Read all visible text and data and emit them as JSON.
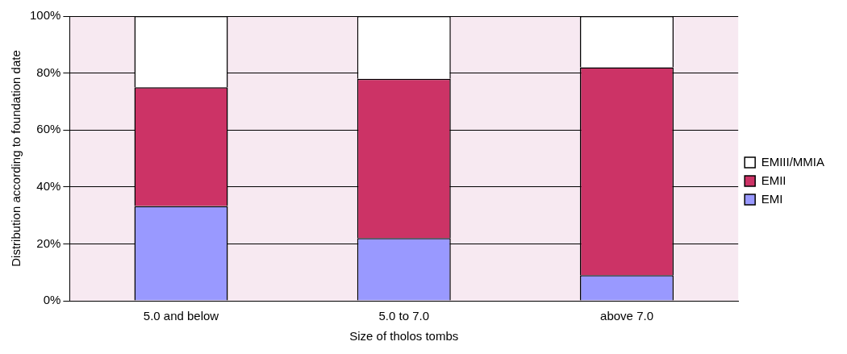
{
  "chart_data": {
    "type": "bar",
    "stacked": true,
    "xlabel": "Size of tholos tombs",
    "ylabel": "Distribution according to foundation date",
    "categories": [
      "5.0 and below",
      "5.0 to 7.0",
      "above 7.0"
    ],
    "series": [
      {
        "name": "EMI",
        "color": "#9999ff",
        "values": [
          33.3,
          22,
          9
        ]
      },
      {
        "name": "EMII",
        "color": "#cc3366",
        "values": [
          41.7,
          56,
          73
        ]
      },
      {
        "name": "EMIII/MMIA",
        "color": "#ffffff",
        "values": [
          25,
          22,
          18
        ]
      }
    ],
    "ylim": [
      0,
      100
    ],
    "yticks": [
      {
        "value": 0,
        "label": "0%"
      },
      {
        "value": 20,
        "label": "20%"
      },
      {
        "value": 40,
        "label": "40%"
      },
      {
        "value": 60,
        "label": "60%"
      },
      {
        "value": 80,
        "label": "80%"
      },
      {
        "value": 100,
        "label": "100%"
      }
    ],
    "grid": "y",
    "legend": "right"
  }
}
